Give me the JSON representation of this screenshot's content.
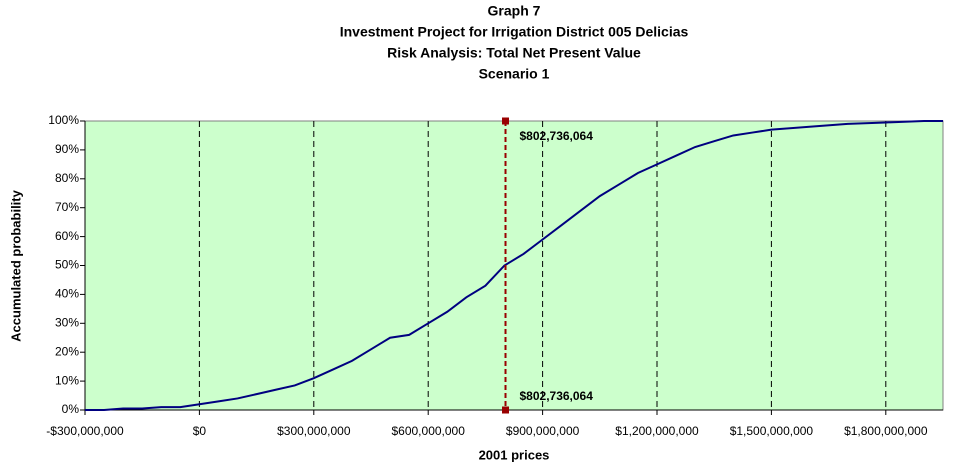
{
  "chart_data": {
    "type": "line",
    "title": [
      "Graph 7",
      "Investment Project for Irrigation District 005 Delicias",
      "Risk Analysis: Total Net Present Value",
      "Scenario 1"
    ],
    "x_label": "2001 prices",
    "y_label": "Accumulated probability",
    "x": [
      -300000000,
      -250000000,
      -200000000,
      -150000000,
      -100000000,
      -50000000,
      0,
      50000000,
      100000000,
      150000000,
      200000000,
      250000000,
      300000000,
      350000000,
      400000000,
      450000000,
      500000000,
      550000000,
      600000000,
      650000000,
      700000000,
      750000000,
      800000000,
      850000000,
      900000000,
      950000000,
      1000000000,
      1050000000,
      1100000000,
      1150000000,
      1200000000,
      1250000000,
      1300000000,
      1350000000,
      1400000000,
      1450000000,
      1500000000,
      1600000000,
      1700000000,
      1800000000,
      1900000000,
      1950000000
    ],
    "series": [
      {
        "name": "Total Net Present Value",
        "color": "#000080",
        "values": [
          0,
          0,
          0.5,
          0.5,
          1,
          1,
          2,
          3,
          4,
          5.5,
          7,
          8.5,
          11,
          14,
          17,
          21,
          25,
          26,
          30,
          34,
          39,
          43,
          50,
          54,
          59,
          64,
          69,
          74,
          78,
          82,
          85,
          88,
          91,
          93,
          95,
          96,
          97,
          98,
          99,
          99.5,
          100,
          100
        ]
      }
    ],
    "marker": {
      "x": 802736064,
      "label": "$802,736,064",
      "color": "#990000"
    },
    "xlim": [
      -300000000,
      1950000000
    ],
    "xticks": [
      {
        "value": -300000000,
        "label": "-$300,000,000"
      },
      {
        "value": 0,
        "label": "$0"
      },
      {
        "value": 300000000,
        "label": "$300,000,000"
      },
      {
        "value": 600000000,
        "label": "$600,000,000"
      },
      {
        "value": 900000000,
        "label": "$900,000,000"
      },
      {
        "value": 1200000000,
        "label": "$1,200,000,000"
      },
      {
        "value": 1500000000,
        "label": "$1,500,000,000"
      },
      {
        "value": 1800000000,
        "label": "$1,800,000,000"
      }
    ],
    "ylim": [
      0,
      100
    ],
    "yticks": [
      {
        "value": 0,
        "label": "0%"
      },
      {
        "value": 10,
        "label": "10%"
      },
      {
        "value": 20,
        "label": "20%"
      },
      {
        "value": 30,
        "label": "30%"
      },
      {
        "value": 40,
        "label": "40%"
      },
      {
        "value": 50,
        "label": "50%"
      },
      {
        "value": 60,
        "label": "60%"
      },
      {
        "value": 70,
        "label": "70%"
      },
      {
        "value": 80,
        "label": "80%"
      },
      {
        "value": 90,
        "label": "90%"
      },
      {
        "value": 100,
        "label": "100%"
      }
    ],
    "grid": "x",
    "plot_background": "#ccffcc"
  }
}
